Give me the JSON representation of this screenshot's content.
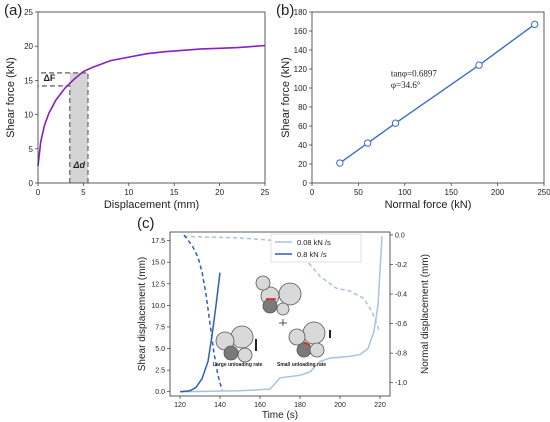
{
  "chart_data": [
    {
      "panel_label": "(a)",
      "type": "line",
      "xlabel": "Displacement (mm)",
      "ylabel": "Shear force (kN)",
      "xlim": [
        0,
        25
      ],
      "ylim": [
        0,
        25
      ],
      "xticks": [
        "0",
        "5",
        "10",
        "15",
        "20",
        "25"
      ],
      "yticks": [
        "0",
        "5",
        "10",
        "15",
        "20",
        "25"
      ],
      "series": [
        {
          "color": "#8a1fbf",
          "x": [
            0,
            0.3,
            0.7,
            1.2,
            2,
            3,
            4,
            5,
            6,
            8,
            10,
            12,
            14,
            16,
            18,
            20,
            22,
            24,
            25
          ],
          "y": [
            2.5,
            6.0,
            8.4,
            10.2,
            12.2,
            13.9,
            15.2,
            16.3,
            16.9,
            17.9,
            18.4,
            18.9,
            19.2,
            19.4,
            19.6,
            19.7,
            19.8,
            20.0,
            20.1
          ]
        }
      ],
      "annotations": [
        "ΔF",
        "Δd"
      ],
      "shaded_interval": {
        "x": [
          3.5,
          5.5
        ],
        "y": [
          14.2,
          16.1
        ]
      }
    },
    {
      "panel_label": "(b)",
      "type": "line",
      "xlabel": "Normal force (kN)",
      "ylabel": "Shear force (kN)",
      "xlim": [
        0,
        250
      ],
      "ylim": [
        0,
        180
      ],
      "xticks": [
        "0",
        "50",
        "100",
        "150",
        "200",
        "250"
      ],
      "yticks": [
        "0",
        "20",
        "40",
        "60",
        "80",
        "100",
        "120",
        "140",
        "160",
        "180"
      ],
      "series": [
        {
          "color": "#3a6fc4",
          "markers": "open-circle",
          "x": [
            30,
            60,
            90,
            180,
            240
          ],
          "y": [
            21,
            42,
            63,
            124,
            167
          ]
        }
      ],
      "annotations": [
        "tanφ=0.6897",
        "φ=34.6°"
      ]
    },
    {
      "panel_label": "(c)",
      "type": "line",
      "xlabel": "Time (s)",
      "ylabel": "Shear displacement (mm)",
      "ylabel_right": "Normal displacement (mm)",
      "xlim": [
        115,
        225
      ],
      "ylim": [
        -0.5,
        18.5
      ],
      "ylim_right": [
        -1.09,
        0.02
      ],
      "xticks": [
        "120",
        "140",
        "160",
        "180",
        "200",
        "220"
      ],
      "yticks": [
        "0.0",
        "2.5",
        "5.0",
        "7.5",
        "10.0",
        "12.5",
        "15.0",
        "17.5"
      ],
      "yticks_right": [
        "0.0",
        "-0.2",
        "-0.4",
        "-0.6",
        "-0.8",
        "-1.0"
      ],
      "series": [
        {
          "name": "0.08 kN /s",
          "color": "#a9c2e2",
          "axis": "left",
          "x": [
            120,
            150,
            165,
            170,
            180,
            185,
            190,
            195,
            200,
            205,
            210,
            214,
            217,
            219,
            220,
            221
          ],
          "y": [
            0,
            0.1,
            0.3,
            1.6,
            1.9,
            2.3,
            3.5,
            3.9,
            4.0,
            4.1,
            4.3,
            5.0,
            7.0,
            10.0,
            14.0,
            18.0
          ]
        },
        {
          "name": "0.8 kN /s",
          "color": "#2e5fb8",
          "axis": "left",
          "x": [
            120,
            125,
            128,
            131,
            134,
            136,
            138,
            140
          ],
          "y": [
            0,
            0.1,
            0.5,
            1.5,
            3.5,
            6.5,
            10.0,
            13.8
          ]
        },
        {
          "color": "#a9c2e2",
          "axis": "right",
          "dashed": true,
          "x": [
            122,
            150,
            170,
            180,
            190,
            198,
            205,
            212,
            216,
            220
          ],
          "y": [
            -0.01,
            -0.02,
            -0.04,
            -0.12,
            -0.28,
            -0.36,
            -0.38,
            -0.43,
            -0.52,
            -0.66
          ]
        },
        {
          "color": "#2e5fb8",
          "axis": "right",
          "dashed": true,
          "x": [
            122,
            126,
            129,
            131,
            133,
            135,
            137,
            139,
            141
          ],
          "y": [
            0,
            -0.07,
            -0.15,
            -0.25,
            -0.4,
            -0.6,
            -0.8,
            -0.95,
            -1.05
          ]
        }
      ],
      "annotations": [
        "Large unloading rate",
        "Small unloading rate"
      ]
    }
  ]
}
